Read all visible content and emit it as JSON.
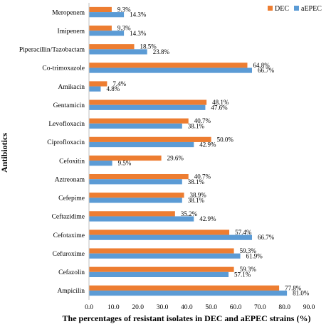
{
  "chart_data": {
    "type": "bar",
    "orientation": "horizontal",
    "categories": [
      "Meropenem",
      "Imipenem",
      "Piperacillin/Tazobactam",
      "Co-trimoxazole",
      "Amikacin",
      "Gentamicin",
      "Levofloxacin",
      "Ciprofloxacin",
      "Cefoxitin",
      "Aztreonam",
      "Cefepime",
      "Ceftazidime",
      "Cefotaxime",
      "Cefuroxime",
      "Cefazolin",
      "Ampicilin"
    ],
    "series": [
      {
        "name": "DEC",
        "color": "#ED7D31",
        "values": [
          9.3,
          9.3,
          18.5,
          64.8,
          7.4,
          48.1,
          40.7,
          50.0,
          29.6,
          40.7,
          38.9,
          35.2,
          57.4,
          59.3,
          59.3,
          77.8
        ],
        "labels": [
          "9.3%",
          "9.3%",
          "18.5%",
          "64.8%",
          "7.4%",
          "48.1%",
          "40.7%",
          "50.0%",
          "29.6%",
          "40.7%",
          "38.9%",
          "35.2%",
          "57.4%",
          "59.3%",
          "59.3%",
          "77.8%"
        ]
      },
      {
        "name": "aEPEC",
        "color": "#5B9BD5",
        "values": [
          14.3,
          14.3,
          23.8,
          66.7,
          4.8,
          47.6,
          38.1,
          42.9,
          9.5,
          38.1,
          38.1,
          42.9,
          66.7,
          61.9,
          57.1,
          81.0
        ],
        "labels": [
          "14.3%",
          "14.3%",
          "23.8%",
          "66.7%",
          "4.8%",
          "47.6%",
          "38.1%",
          "42.9%",
          "9.5%",
          "38.1%",
          "38.1%",
          "42.9%",
          "66.7%",
          "61.9%",
          "57.1%",
          "81.0%"
        ]
      }
    ],
    "xlabel": "The  percentages of resistant isolates in DEC and aEPEC strains (%)",
    "ylabel": "Antibiotics",
    "xlim": [
      0,
      90
    ],
    "xticks": [
      "0.0",
      "10.0",
      "20.0",
      "30.0",
      "40.0",
      "50.0",
      "60.0",
      "70.0",
      "80.0",
      "90.0"
    ],
    "grid": false,
    "legend": "top-right"
  }
}
